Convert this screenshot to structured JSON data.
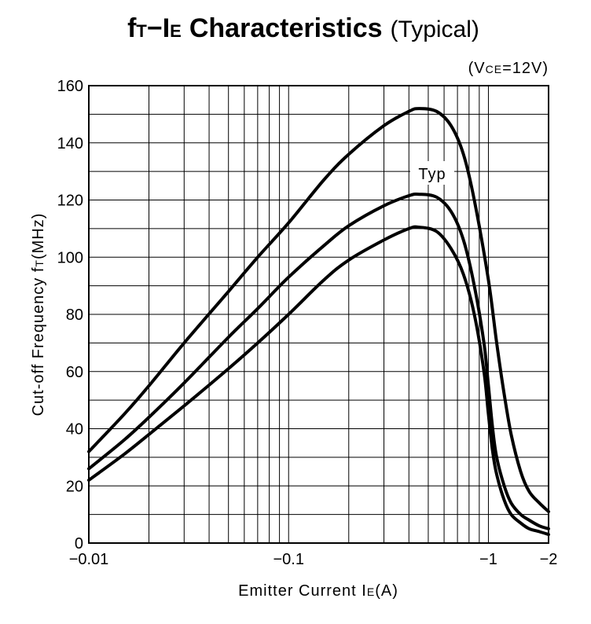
{
  "chart_data": {
    "type": "line",
    "title": {
      "main_f": "f",
      "main_f_sub": "T",
      "main_dash": "−",
      "main_i": "I",
      "main_i_sub": "E",
      "main_rest": "Characteristics",
      "suffix": "(Typical)"
    },
    "condition": {
      "open": "(V",
      "sub": "CE",
      "rest": "=12V)"
    },
    "xlabel": {
      "prefix": "Emitter Current I",
      "sub": "E",
      "suffix": "(A)"
    },
    "ylabel": {
      "prefix": "Cut-off Frequency f",
      "sub": "T",
      "suffix": "(MHz)"
    },
    "x_scale": "log",
    "x_tick_labels": [
      {
        "value": 0.01,
        "label": "−0.01"
      },
      {
        "value": 0.1,
        "label": "−0.1"
      },
      {
        "value": 1,
        "label": "−1"
      },
      {
        "value": 2,
        "label": "−2"
      }
    ],
    "x_gridlines": [
      0.01,
      0.02,
      0.03,
      0.04,
      0.05,
      0.06,
      0.07,
      0.08,
      0.09,
      0.1,
      0.2,
      0.3,
      0.4,
      0.5,
      0.6,
      0.7,
      0.8,
      0.9,
      1,
      2
    ],
    "xlim": [
      0.01,
      2
    ],
    "ylim": [
      0,
      160
    ],
    "y_ticks": [
      0,
      20,
      40,
      60,
      80,
      100,
      120,
      140,
      160
    ],
    "y_minor_gridlines": [
      10,
      30,
      50,
      70,
      90,
      110,
      130,
      150
    ],
    "grid": true,
    "annotation": "Typ",
    "series": [
      {
        "x": [
          0.01,
          0.015,
          0.02,
          0.03,
          0.05,
          0.07,
          0.1,
          0.15,
          0.2,
          0.3,
          0.4,
          0.45,
          0.55,
          0.65,
          0.75,
          0.85,
          1.0,
          1.1,
          1.2,
          1.3,
          1.45,
          1.6,
          1.8,
          2.0
        ],
        "values": [
          32,
          45,
          55,
          70,
          88,
          100,
          112,
          127,
          136,
          146,
          151,
          152,
          151,
          146,
          136,
          120,
          92,
          70,
          52,
          38,
          25,
          18,
          14,
          11
        ]
      },
      {
        "x": [
          0.01,
          0.015,
          0.02,
          0.03,
          0.05,
          0.07,
          0.1,
          0.15,
          0.2,
          0.3,
          0.4,
          0.45,
          0.55,
          0.65,
          0.75,
          0.85,
          0.95,
          1.0,
          1.05,
          1.1,
          1.2,
          1.3,
          1.45,
          1.6,
          1.8,
          2.0
        ],
        "values": [
          26,
          36,
          44,
          56,
          72,
          82,
          93,
          104,
          111,
          118,
          121.5,
          122,
          121,
          116,
          106,
          90,
          70,
          55,
          40,
          30,
          20,
          14,
          10,
          8,
          6,
          5
        ]
      },
      {
        "x": [
          0.01,
          0.015,
          0.02,
          0.03,
          0.05,
          0.07,
          0.1,
          0.15,
          0.2,
          0.3,
          0.4,
          0.45,
          0.55,
          0.65,
          0.75,
          0.85,
          0.95,
          1.0,
          1.05,
          1.1,
          1.2,
          1.3,
          1.45,
          1.6,
          1.8,
          2.0
        ],
        "values": [
          22,
          31,
          38,
          48,
          61,
          70,
          80,
          92,
          99,
          106,
          110,
          110.5,
          109,
          103,
          94,
          80,
          60,
          45,
          32,
          24,
          15,
          10,
          7,
          5,
          4,
          3
        ]
      }
    ]
  }
}
